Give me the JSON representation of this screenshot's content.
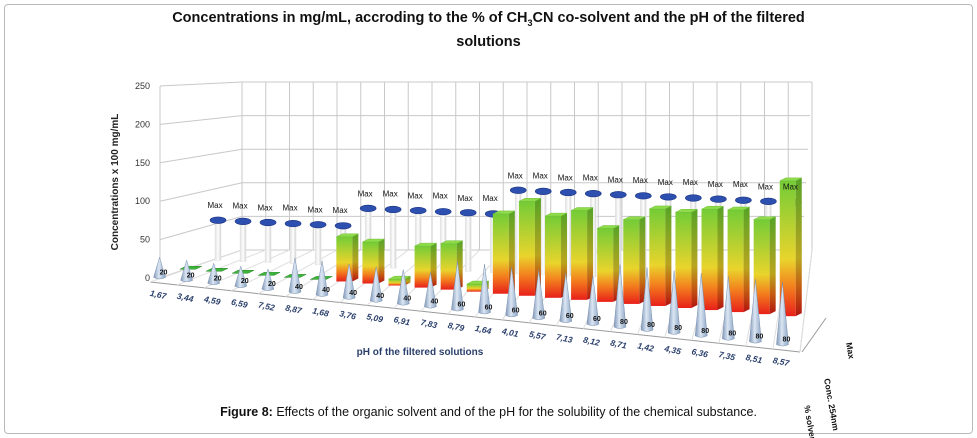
{
  "figure": {
    "title_pre": "Concentrations in mg/mL, accroding to the % of CH",
    "title_sub": "3",
    "title_post": "CN co-solvent  and the pH of the filtered",
    "title_line2": "solutions",
    "caption_bold": "Figure 8:",
    "caption_text": " Effects of the organic solvent and of the pH for the solubility of the chemical substance."
  },
  "colors": {
    "grid": "#c8c8c8",
    "max_marker": "#2d4fb0",
    "cone": "#a9bfd9",
    "bar_top": "#7fd23a",
    "bar_bottom": "#e8201a",
    "white_pillar": "#f4f4f4"
  },
  "chart_data": {
    "type": "bar",
    "chart_style": "3d-bar-with-depth-series",
    "ylabel": "Concentrations  x 100 mg/mL",
    "xlabel": "pH of the filtered solutions",
    "ylim": [
      0,
      250
    ],
    "yticks": [
      "0",
      "50",
      "100",
      "150",
      "200",
      "250"
    ],
    "grid": true,
    "categories": [
      "1,67",
      "3,44",
      "4,59",
      "6,59",
      "7,52",
      "8,87",
      "1,68",
      "3,76",
      "5,09",
      "6,91",
      "7,83",
      "8,79",
      "1,64",
      "4,01",
      "5,57",
      "7,13",
      "8,12",
      "8,71",
      "1,42",
      "4,35",
      "6,36",
      "7,35",
      "8,51",
      "8,57"
    ],
    "series_labels": [
      "Max",
      "Conc. 254nm",
      "% solvent"
    ],
    "series": [
      {
        "name": "Max",
        "marker": "flat-disc",
        "label_text": "Max",
        "values": [
          65,
          65,
          65,
          65,
          65,
          65,
          95,
          95,
          95,
          95,
          95,
          95,
          135,
          135,
          135,
          135,
          135,
          135,
          135,
          135,
          135,
          135,
          135,
          135
        ]
      },
      {
        "name": "Conc. 254nm",
        "marker": "gradient-bar",
        "values": [
          2,
          2,
          2,
          2,
          2,
          2,
          70,
          65,
          10,
          65,
          72,
          12,
          125,
          148,
          128,
          140,
          115,
          132,
          152,
          150,
          158,
          160,
          148,
          212
        ]
      },
      {
        "name": "% solvent",
        "marker": "cone",
        "values": [
          20,
          20,
          20,
          20,
          20,
          40,
          40,
          40,
          40,
          40,
          40,
          60,
          60,
          60,
          60,
          60,
          60,
          80,
          80,
          80,
          80,
          80,
          80,
          80
        ]
      }
    ],
    "legend_placement": "depth-axis-right"
  }
}
